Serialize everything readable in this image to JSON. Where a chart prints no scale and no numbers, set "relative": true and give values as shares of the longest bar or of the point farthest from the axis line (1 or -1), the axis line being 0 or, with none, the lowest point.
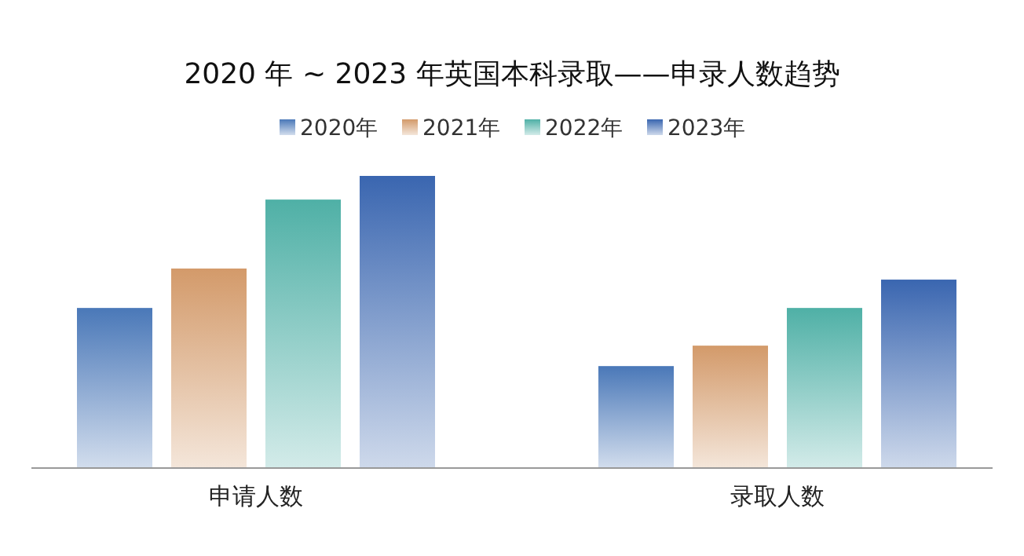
{
  "chart_data": {
    "type": "bar",
    "relative": true,
    "title": "2020 年 ~ 2023 年英国本科录取——申录人数趋势",
    "categories": [
      "申请人数",
      "录取人数"
    ],
    "legend": "top",
    "series": [
      {
        "name": "2020年",
        "color": "#4a78b8",
        "values": [
          0.548,
          0.349
        ]
      },
      {
        "name": "2021年",
        "color": "#d39a6a",
        "values": [
          0.683,
          0.419
        ]
      },
      {
        "name": "2022年",
        "color": "#4fb0a6",
        "values": [
          0.919,
          0.548
        ]
      },
      {
        "name": "2023年",
        "color": "#3a66b0",
        "values": [
          1,
          0.645
        ]
      }
    ]
  }
}
